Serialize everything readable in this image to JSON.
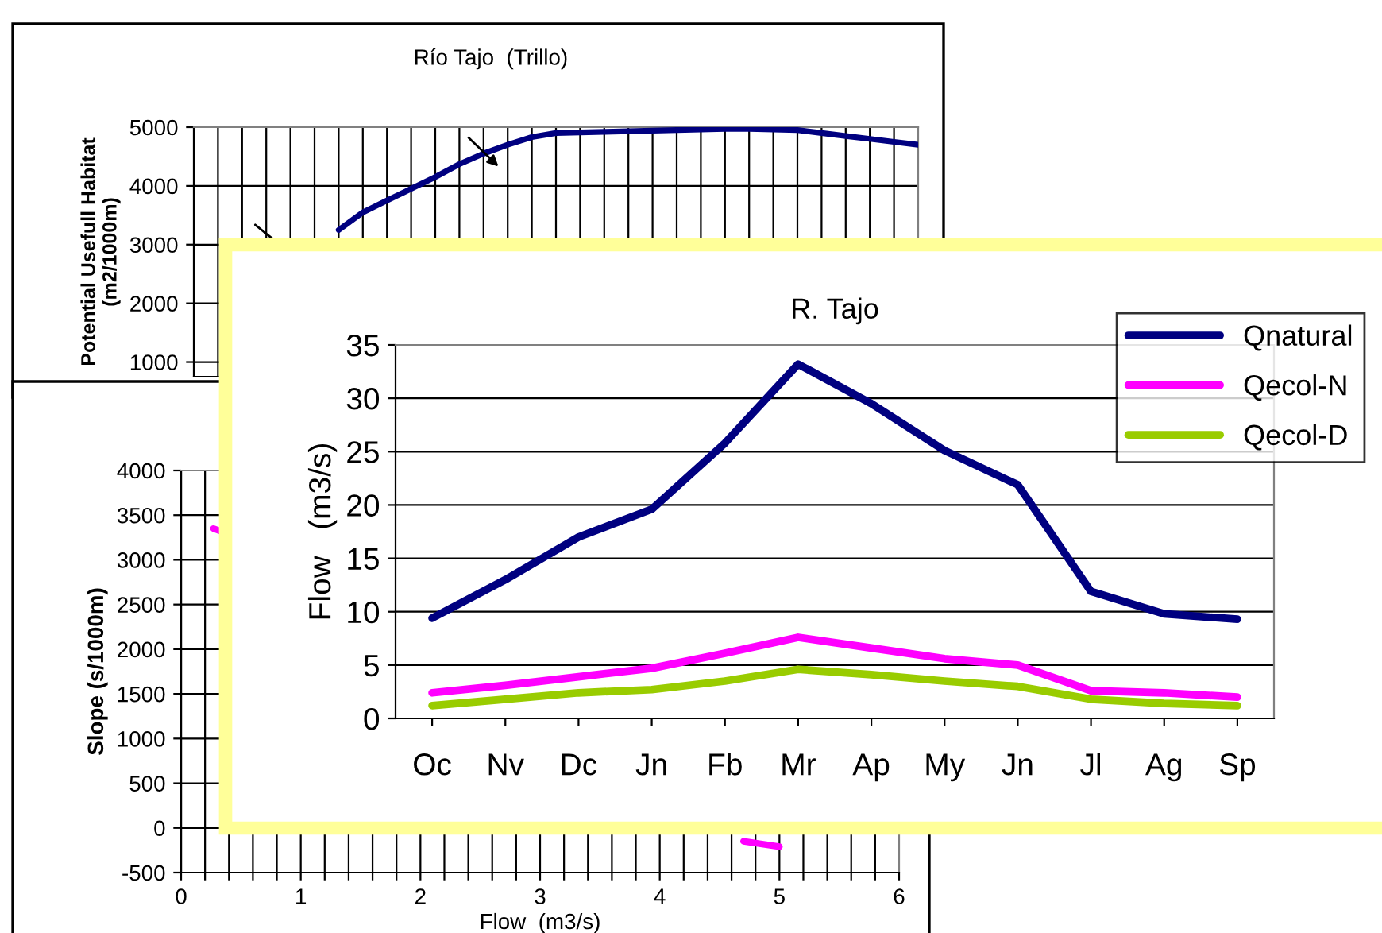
{
  "chart_data": [
    {
      "type": "line",
      "title": "Río Tajo  (Trillo)",
      "ylabel": "Potential Usefull Habitat\n(m2/1000m)",
      "categories": [
        null,
        null,
        null,
        null,
        null,
        null,
        null,
        null,
        null,
        null,
        null,
        null,
        null,
        null,
        null,
        null,
        null,
        null,
        null,
        null,
        null,
        null,
        null,
        null,
        null,
        null,
        null,
        null,
        null,
        null,
        null
      ],
      "series": [
        {
          "color": "#000080",
          "values": [
            null,
            null,
            null,
            null,
            null,
            null,
            3250,
            3550,
            3750,
            3950,
            4150,
            4370,
            4550,
            4700,
            4830,
            4900,
            4910,
            4920,
            4930,
            4940,
            4950,
            4960,
            4970,
            4970,
            4960,
            4950,
            4900,
            4850,
            4800,
            4750,
            4700
          ]
        }
      ],
      "ylim": [
        750,
        5000
      ],
      "yticks": [
        1000,
        2000,
        3000,
        4000,
        5000
      ],
      "grid": true,
      "tick_labels": "y"
    },
    {
      "type": "line",
      "xlabel": "Flow  (m3/s)",
      "ylabel": "Slope (s/1000m)",
      "series": [
        {
          "color": "#ff00ff",
          "x": [
            0.27,
            0.33,
            2.0,
            4.7,
            5.0
          ],
          "values": [
            3350,
            3320,
            null,
            -150,
            -210
          ]
        }
      ],
      "xlim": [
        0,
        6
      ],
      "xticks": [
        0,
        {
          "value": 0.2,
          "label": null
        },
        {
          "value": 0.4,
          "label": null
        },
        {
          "value": 0.6,
          "label": null
        },
        {
          "value": 0.8,
          "label": null
        },
        1,
        {
          "value": 1.2,
          "label": null
        },
        {
          "value": 1.4,
          "label": null
        },
        {
          "value": 1.6,
          "label": null
        },
        {
          "value": 1.8,
          "label": null
        },
        2,
        {
          "value": 2.2,
          "label": null
        },
        {
          "value": 2.4,
          "label": null
        },
        {
          "value": 2.6,
          "label": null
        },
        {
          "value": 2.8,
          "label": null
        },
        3,
        {
          "value": 3.2,
          "label": null
        },
        {
          "value": 3.4,
          "label": null
        },
        {
          "value": 3.6,
          "label": null
        },
        {
          "value": 3.8,
          "label": null
        },
        4,
        {
          "value": 4.2,
          "label": null
        },
        {
          "value": 4.4,
          "label": null
        },
        {
          "value": 4.6,
          "label": null
        },
        {
          "value": 4.8,
          "label": null
        },
        5,
        {
          "value": 5.2,
          "label": null
        },
        {
          "value": 5.4,
          "label": null
        },
        {
          "value": 5.6,
          "label": null
        },
        {
          "value": 5.8,
          "label": null
        },
        6
      ],
      "ylim": [
        -500,
        4000
      ],
      "yticks": [
        -500,
        0,
        500,
        1000,
        1500,
        2000,
        2500,
        3000,
        3500,
        4000
      ],
      "grid": true
    },
    {
      "type": "line",
      "title": "R. Tajo",
      "ylabel": "Flow   (m3/s)",
      "categories": [
        "Oc",
        "Nv",
        "Dc",
        "Jn",
        "Fb",
        "Mr",
        "Ap",
        "My",
        "Jn",
        "Jl",
        "Ag",
        "Sp"
      ],
      "series": [
        {
          "name": "Qnatural",
          "color": "#000080",
          "values": [
            9.4,
            13.0,
            17.0,
            19.6,
            25.8,
            33.2,
            29.5,
            25.1,
            21.9,
            11.9,
            9.8,
            9.3
          ]
        },
        {
          "name": "Qecol-N",
          "color": "#ff00ff",
          "values": [
            2.4,
            3.1,
            3.9,
            4.7,
            6.1,
            7.6,
            6.6,
            5.6,
            5.0,
            2.6,
            2.4,
            2.0
          ]
        },
        {
          "name": "Qecol-D",
          "color": "#99cc00",
          "values": [
            1.2,
            1.8,
            2.4,
            2.7,
            3.5,
            4.6,
            4.1,
            3.5,
            3.0,
            1.8,
            1.4,
            1.2
          ]
        }
      ],
      "ylim": [
        0,
        35
      ],
      "yticks": [
        0,
        5,
        10,
        15,
        20,
        25,
        30,
        35
      ],
      "grid": "y",
      "legend": "right"
    }
  ]
}
